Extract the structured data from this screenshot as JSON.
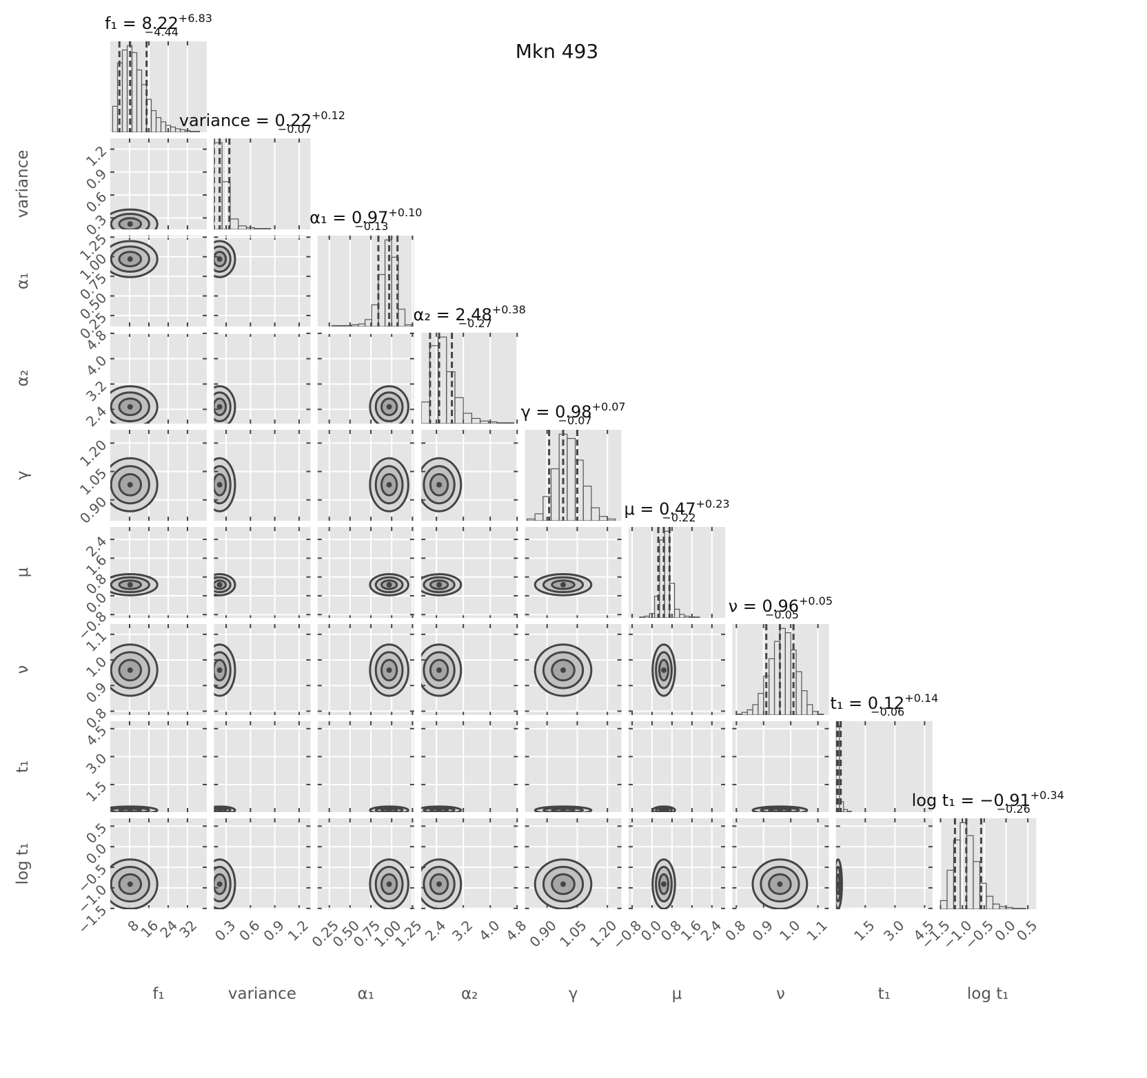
{
  "chart_data": {
    "type": "corner",
    "title": "Mkn 493",
    "hist_ylim": [
      0,
      105
    ],
    "params": [
      {
        "name": "f₁",
        "xlim": [
          0,
          40
        ],
        "ticks": [
          8,
          16,
          24,
          32
        ],
        "median": 8.22,
        "err_plus": 6.83,
        "err_minus": -4.44,
        "title": {
          "text": "f₁ = 8.22",
          "upper": "+6.83",
          "lower": "−4.44"
        },
        "bins": [
          1,
          3,
          5,
          7,
          9,
          11,
          13,
          15,
          17,
          19,
          21,
          23,
          25,
          27,
          29,
          31,
          33,
          35,
          37
        ],
        "counts": [
          30,
          80,
          95,
          100,
          92,
          72,
          55,
          38,
          25,
          17,
          12,
          8,
          6,
          4,
          3,
          2,
          1,
          1
        ]
      },
      {
        "name": "variance",
        "xlim": [
          0.15,
          1.34
        ],
        "ticks": [
          0.3,
          0.6,
          0.9,
          1.2
        ],
        "median": 0.22,
        "err_plus": 0.12,
        "err_minus": -0.07,
        "title": {
          "text": "variance = 0.22",
          "upper": "+0.12",
          "lower": "−0.07"
        },
        "bins": [
          0.15,
          0.25,
          0.35,
          0.45,
          0.55,
          0.65,
          0.75,
          0.85,
          0.95,
          1.05,
          1.15,
          1.25,
          1.35
        ],
        "counts": [
          100,
          55,
          12,
          4,
          2,
          1,
          1,
          0,
          0,
          0,
          0,
          0
        ]
      },
      {
        "name": "α₁",
        "xlim": [
          0.11,
          1.27
        ],
        "ticks": [
          0.25,
          {
            "value": 0.5,
            "label": "0.50"
          },
          0.75,
          {
            "value": 1,
            "label": "1.00"
          },
          1.25
        ],
        "median": 0.97,
        "err_plus": 0.1,
        "err_minus": -0.13,
        "title": {
          "text": "α₁ = 0.97",
          "upper": "+0.10",
          "lower": "−0.13"
        },
        "bins": [
          0.28,
          0.36,
          0.44,
          0.52,
          0.6,
          0.68,
          0.76,
          0.84,
          0.92,
          1.0,
          1.08,
          1.16,
          1.24
        ],
        "counts": [
          1,
          1,
          1,
          2,
          3,
          8,
          25,
          60,
          100,
          80,
          20,
          2
        ]
      },
      {
        "name": "α₂",
        "xlim": [
          1.95,
          4.82
        ],
        "ticks": [
          2.4,
          3.2,
          {
            "value": 4,
            "label": "4.0"
          },
          4.8
        ],
        "median": 2.48,
        "err_plus": 0.38,
        "err_minus": -0.27,
        "title": {
          "text": "α₂ = 2.48",
          "upper": "+0.38",
          "lower": "−0.27"
        },
        "bins": [
          1.95,
          2.2,
          2.45,
          2.7,
          2.95,
          3.2,
          3.45,
          3.7,
          3.95,
          4.2,
          4.45,
          4.7
        ],
        "counts": [
          25,
          90,
          100,
          60,
          30,
          12,
          6,
          3,
          2,
          1,
          1
        ]
      },
      {
        "name": "γ",
        "xlim": [
          0.79,
          1.27
        ],
        "ticks": [
          {
            "value": 0.9,
            "label": "0.90"
          },
          1.05,
          {
            "value": 1.2,
            "label": "1.20"
          }
        ],
        "median": 0.98,
        "err_plus": 0.07,
        "err_minus": -0.07,
        "title": {
          "text": "γ = 0.98",
          "upper": "+0.07",
          "lower": "−0.07"
        },
        "bins": [
          0.8,
          0.84,
          0.88,
          0.92,
          0.96,
          1.0,
          1.04,
          1.08,
          1.12,
          1.16,
          1.2,
          1.24
        ],
        "counts": [
          2,
          8,
          28,
          60,
          100,
          95,
          70,
          40,
          15,
          5,
          2
        ]
      },
      {
        "name": "μ",
        "xlim": [
          -0.94,
          2.93
        ],
        "ticks": [
          {
            "value": -0.8,
            "label": "−0.8"
          },
          {
            "value": 0,
            "label": "0.0"
          },
          0.8,
          1.6,
          2.4
        ],
        "median": 0.47,
        "err_plus": 0.23,
        "err_minus": -0.22,
        "title": {
          "text": "μ = 0.47",
          "upper": "+0.23",
          "lower": "−0.22"
        },
        "bins": [
          -0.5,
          -0.3,
          -0.1,
          0.1,
          0.3,
          0.5,
          0.7,
          0.9,
          1.1,
          1.3,
          1.5,
          1.7,
          1.9
        ],
        "counts": [
          1,
          2,
          5,
          25,
          90,
          100,
          40,
          10,
          4,
          2,
          1,
          1
        ]
      },
      {
        "name": "ν",
        "xlim": [
          0.785,
          1.14
        ],
        "ticks": [
          0.8,
          0.9,
          {
            "value": 1,
            "label": "1.0"
          },
          1.1
        ],
        "median": 0.96,
        "err_plus": 0.05,
        "err_minus": -0.05,
        "title": {
          "text": "ν = 0.96",
          "upper": "+0.05",
          "lower": "−0.05"
        },
        "bins": [
          0.8,
          0.82,
          0.84,
          0.86,
          0.88,
          0.9,
          0.92,
          0.94,
          0.96,
          0.98,
          1.0,
          1.02,
          1.04,
          1.06,
          1.08,
          1.1,
          1.12
        ],
        "counts": [
          1,
          3,
          6,
          12,
          25,
          45,
          65,
          85,
          100,
          95,
          75,
          50,
          28,
          12,
          4,
          1
        ]
      },
      {
        "name": "t₁",
        "xlim": [
          0.02,
          4.9
        ],
        "ticks": [
          1.5,
          {
            "value": 3,
            "label": "3.0"
          },
          4.5
        ],
        "median": 0.12,
        "err_plus": 0.14,
        "err_minus": -0.06,
        "title": {
          "text": "t₁ = 0.12",
          "upper": "+0.14",
          "lower": "−0.06"
        },
        "bins": [
          0.02,
          0.2,
          0.4,
          0.6,
          0.8,
          1.0
        ],
        "counts": [
          100,
          12,
          3,
          1,
          0
        ]
      },
      {
        "name": "log t₁",
        "xlim": [
          -1.52,
          0.69
        ],
        "ticks": [
          {
            "value": -1.5,
            "label": "−1.5"
          },
          {
            "value": -1,
            "label": "−1.0"
          },
          {
            "value": -0.5,
            "label": "−0.5"
          },
          {
            "value": 0,
            "label": "0.0"
          },
          0.5
        ],
        "median": -0.91,
        "err_plus": 0.34,
        "err_minus": -0.26,
        "title": {
          "text": "log t₁ = −0.91",
          "upper": "+0.34",
          "lower": "−0.26"
        },
        "bins": [
          -1.5,
          -1.35,
          -1.2,
          -1.05,
          -0.9,
          -0.75,
          -0.6,
          -0.45,
          -0.3,
          -0.15,
          0,
          0.15,
          0.3,
          0.45
        ],
        "counts": [
          10,
          45,
          80,
          100,
          85,
          55,
          30,
          15,
          6,
          3,
          2,
          1,
          1
        ]
      }
    ]
  }
}
